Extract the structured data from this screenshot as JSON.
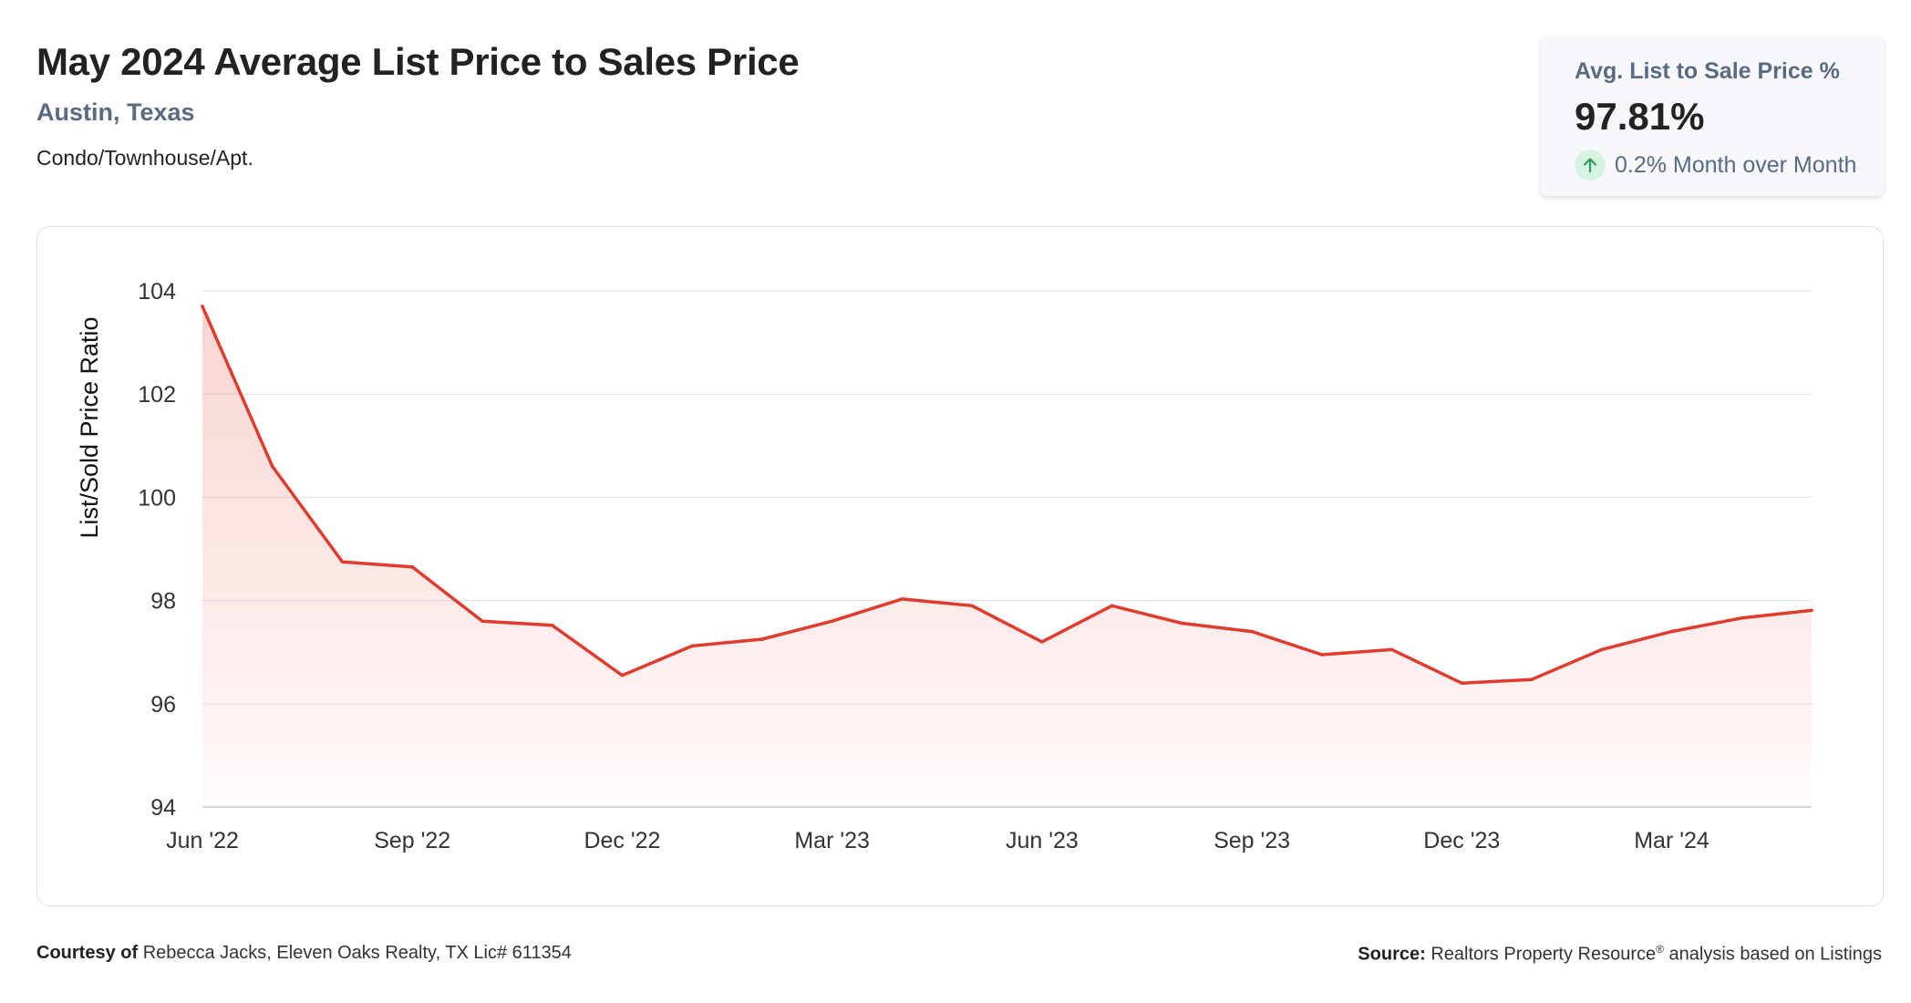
{
  "header": {
    "title": "May 2024 Average List Price to Sales Price",
    "location": "Austin, Texas",
    "category": "Condo/Townhouse/Apt."
  },
  "kpi": {
    "label": "Avg. List to Sale Price %",
    "value": "97.81%",
    "change": "0.2% Month over Month",
    "change_direction": "up",
    "icon": "arrow-up-icon",
    "accent_color": "#2e9e5b"
  },
  "chart_data": {
    "type": "area",
    "ylabel": "List/Sold Price Ratio",
    "xlabel": "",
    "ylim": [
      94,
      104
    ],
    "yticks": [
      "94",
      "96",
      "98",
      "100",
      "102",
      "104"
    ],
    "x_tick_labels": [
      "Jun '22",
      "Sep '22",
      "Dec '22",
      "Mar '23",
      "Jun '23",
      "Sep '23",
      "Dec '23",
      "Mar '24"
    ],
    "categories": [
      "Jun '22",
      "Jul '22",
      "Aug '22",
      "Sep '22",
      "Oct '22",
      "Nov '22",
      "Dec '22",
      "Jan '23",
      "Feb '23",
      "Mar '23",
      "Apr '23",
      "May '23",
      "Jun '23",
      "Jul '23",
      "Aug '23",
      "Sep '23",
      "Oct '23",
      "Nov '23",
      "Dec '23",
      "Jan '24",
      "Feb '24",
      "Mar '24",
      "Apr '24",
      "May '24"
    ],
    "values": [
      103.7,
      100.6,
      98.75,
      98.65,
      97.6,
      97.52,
      96.55,
      97.12,
      97.25,
      97.6,
      98.03,
      97.9,
      97.2,
      97.9,
      97.56,
      97.4,
      96.95,
      97.05,
      96.4,
      96.47,
      97.05,
      97.4,
      97.66,
      97.81
    ],
    "grid": true,
    "line_color": "#e03c2e"
  },
  "footer": {
    "courtesy_label": "Courtesy of",
    "courtesy_text": "Rebecca Jacks, Eleven Oaks Realty, TX Lic# 611354",
    "source_label": "Source:",
    "source_text_a": "Realtors Property Resource",
    "source_mark": "®",
    "source_text_b": " analysis based on Listings"
  }
}
